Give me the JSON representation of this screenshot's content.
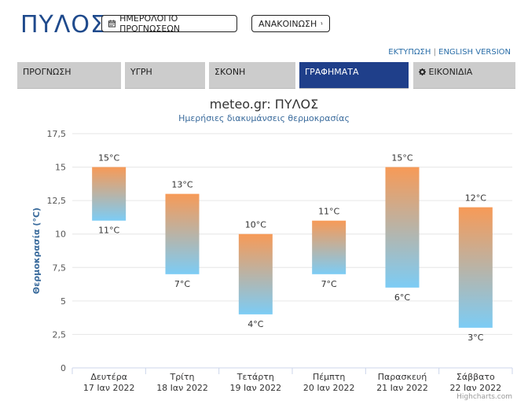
{
  "header": {
    "title": "ΠΥΛΟΣ",
    "calendar_button": "ΗΜΕΡΟΛΟΓΙΟ ΠΡΟΓΝΩΣΕΩΝ",
    "announcement_button": "ΑΝΑΚΟΙΝΩΣΗ",
    "print_link": "ΕΚΤΥΠΩΣΗ",
    "english_link": "ENGLISH VERSION",
    "link_separator": "|"
  },
  "tabs": [
    {
      "label": "ΠΡΟΓΝΩΣΗ",
      "active": false,
      "icon": ""
    },
    {
      "label": "ΥΓΡΗ",
      "active": false,
      "icon": ""
    },
    {
      "label": "ΣΚΟΝΗ",
      "active": false,
      "icon": ""
    },
    {
      "label": "ΓΡΑΦΗΜΑΤΑ",
      "active": true,
      "icon": ""
    },
    {
      "label": "ΕΙΚΟΝΙΔΙΑ",
      "active": false,
      "icon": "gear-icon"
    }
  ],
  "colors": {
    "accent": "#1f3f8a",
    "title": "#1f4a8c",
    "bar_top": "#f79a57",
    "bar_bottom": "#7cccf5"
  },
  "credits": "Highcharts.com",
  "chart_data": {
    "type": "columnrange",
    "title": "meteo.gr: ΠΥΛΟΣ",
    "subtitle": "Ημερήσιες διακυμάνσεις θερμοκρασίας",
    "xlabel": "",
    "ylabel": "Θερμοκρασία (°C)",
    "ylim": [
      0,
      17.5
    ],
    "yticks": [
      "0",
      "2,5",
      "5",
      "7,5",
      "10",
      "12,5",
      "15",
      "17,5"
    ],
    "grid": true,
    "unit": "°C",
    "categories": [
      {
        "day": "Δευτέρα",
        "date": "17 Ιαν 2022"
      },
      {
        "day": "Τρίτη",
        "date": "18 Ιαν 2022"
      },
      {
        "day": "Τετάρτη",
        "date": "19 Ιαν 2022"
      },
      {
        "day": "Πέμπτη",
        "date": "20 Ιαν 2022"
      },
      {
        "day": "Παρασκευή",
        "date": "21 Ιαν 2022"
      },
      {
        "day": "Σάββατο",
        "date": "22 Ιαν 2022"
      }
    ],
    "low": [
      11,
      7,
      4,
      7,
      6,
      3
    ],
    "high": [
      15,
      13,
      10,
      11,
      15,
      12
    ]
  }
}
